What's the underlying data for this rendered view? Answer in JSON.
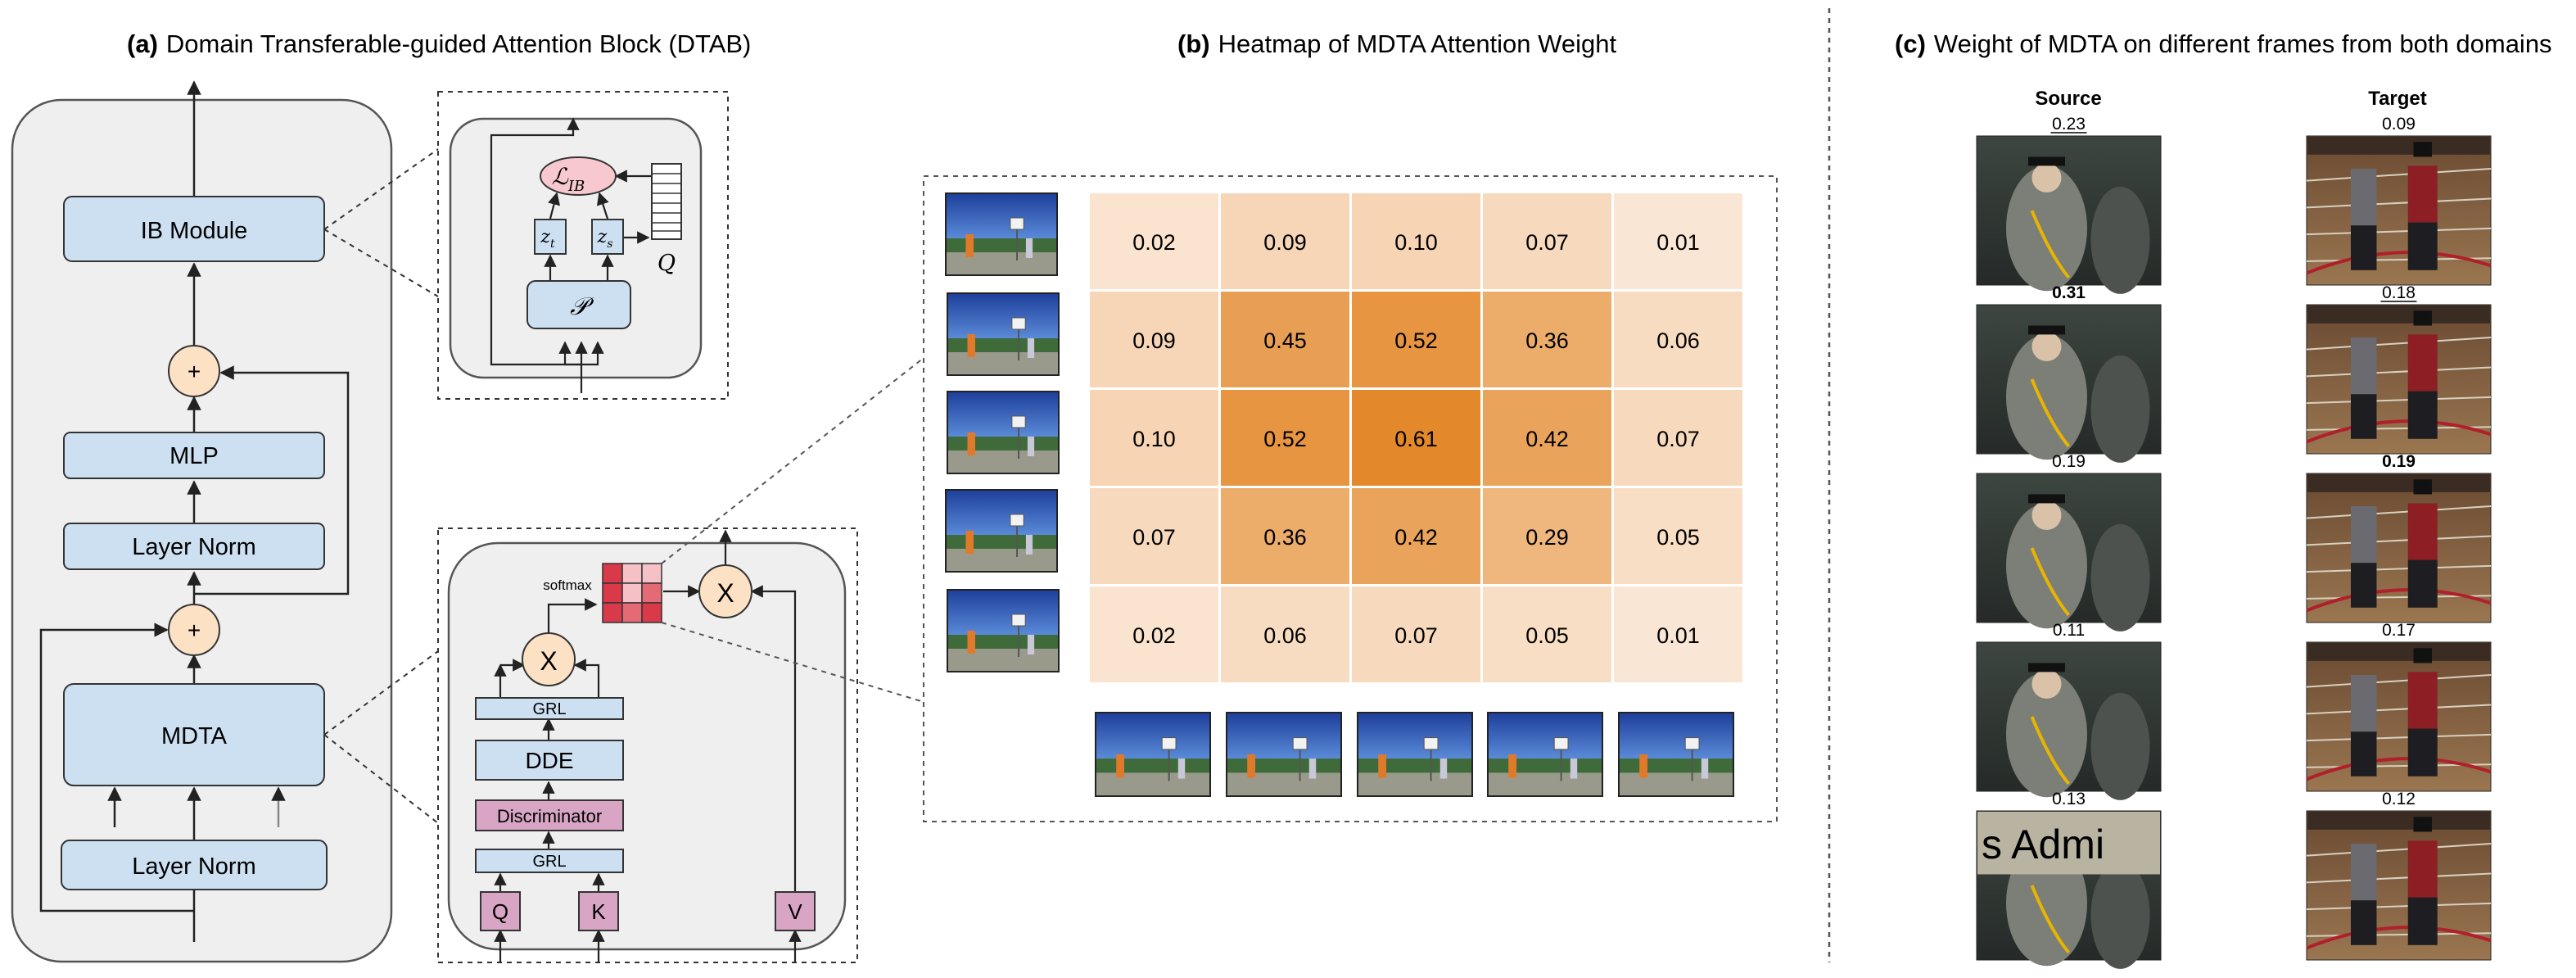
{
  "panel_a": {
    "title_prefix": "(a)",
    "title": "Domain Transferable-guided Attention Block (DTAB)",
    "blocks": {
      "ib_module": "IB Module",
      "mlp": "MLP",
      "layer_norm_top": "Layer Norm",
      "mdta": "MDTA",
      "layer_norm_bottom": "Layer Norm"
    },
    "plus": "+",
    "ib_inset": {
      "loss": "ℒ",
      "loss_sub": "IB",
      "z_t": "z",
      "z_t_sub": "t",
      "z_s": "z",
      "z_s_sub": "s",
      "p": "𝒫",
      "q": "Q"
    },
    "mdta_inset": {
      "softmax": "softmax",
      "mult": "X",
      "grl_top": "GRL",
      "dde": "DDE",
      "discriminator": "Discriminator",
      "grl_bottom": "GRL",
      "q": "Q",
      "k": "K",
      "v": "V"
    }
  },
  "panel_b": {
    "title_prefix": "(b)",
    "title": "Heatmap of MDTA Attention Weight",
    "colors": {
      "low": "#fbe9d9",
      "high": "#e4892b"
    }
  },
  "panel_c": {
    "title_prefix": "(c)",
    "title": "Weight of MDTA on different frames from both domains",
    "source_label": "Source",
    "target_label": "Target",
    "source_color": "#4a7fd4",
    "target_color": "#f0a030",
    "source_weights": [
      "0.23",
      "0.31",
      "0.19",
      "0.11",
      "0.13"
    ],
    "target_weights": [
      "0.09",
      "0.18",
      "0.19",
      "0.17",
      "0.12"
    ],
    "source_frame_text": "s Admi"
  },
  "chart_data": {
    "type": "heatmap",
    "title": "Heatmap of MDTA Attention Weight",
    "rows": 5,
    "cols": 5,
    "values": [
      [
        0.02,
        0.09,
        0.1,
        0.07,
        0.01
      ],
      [
        0.09,
        0.45,
        0.52,
        0.36,
        0.06
      ],
      [
        0.1,
        0.52,
        0.61,
        0.42,
        0.07
      ],
      [
        0.07,
        0.36,
        0.42,
        0.29,
        0.05
      ],
      [
        0.02,
        0.06,
        0.07,
        0.05,
        0.01
      ]
    ],
    "labels": [
      [
        "0.02",
        "0.09",
        "0.10",
        "0.07",
        "0.01"
      ],
      [
        "0.09",
        "0.45",
        "0.52",
        "0.36",
        "0.06"
      ],
      [
        "0.10",
        "0.52",
        "0.61",
        "0.42",
        "0.07"
      ],
      [
        "0.07",
        "0.36",
        "0.42",
        "0.29",
        "0.05"
      ],
      [
        "0.02",
        "0.06",
        "0.07",
        "0.05",
        "0.01"
      ]
    ],
    "legend": "none"
  }
}
